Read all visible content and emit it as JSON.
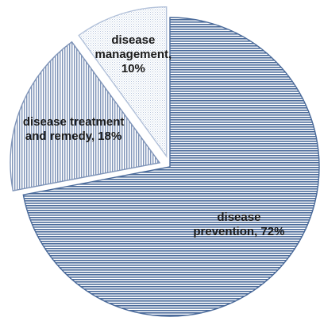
{
  "chart_data": {
    "type": "pie",
    "title": "",
    "slices": [
      {
        "category": "disease prevention",
        "value": 72,
        "label_lines": [
          "disease",
          "prevention, 72%"
        ],
        "pattern": "horizontal-lines",
        "color": "#4a6a9a"
      },
      {
        "category": "disease treatment and remedy",
        "value": 18,
        "label_lines": [
          "disease treatment",
          "and remedy, 18%"
        ],
        "pattern": "vertical-lines",
        "color": "#7f94b8"
      },
      {
        "category": "disease management",
        "value": 10,
        "label_lines": [
          "disease",
          "management,",
          "10%"
        ],
        "pattern": "dotted",
        "color": "#b3c2da"
      }
    ],
    "start_angle_deg": 0,
    "direction": "clockwise",
    "exploded": [
      "disease treatment and remedy",
      "disease management"
    ],
    "legend": "none"
  }
}
